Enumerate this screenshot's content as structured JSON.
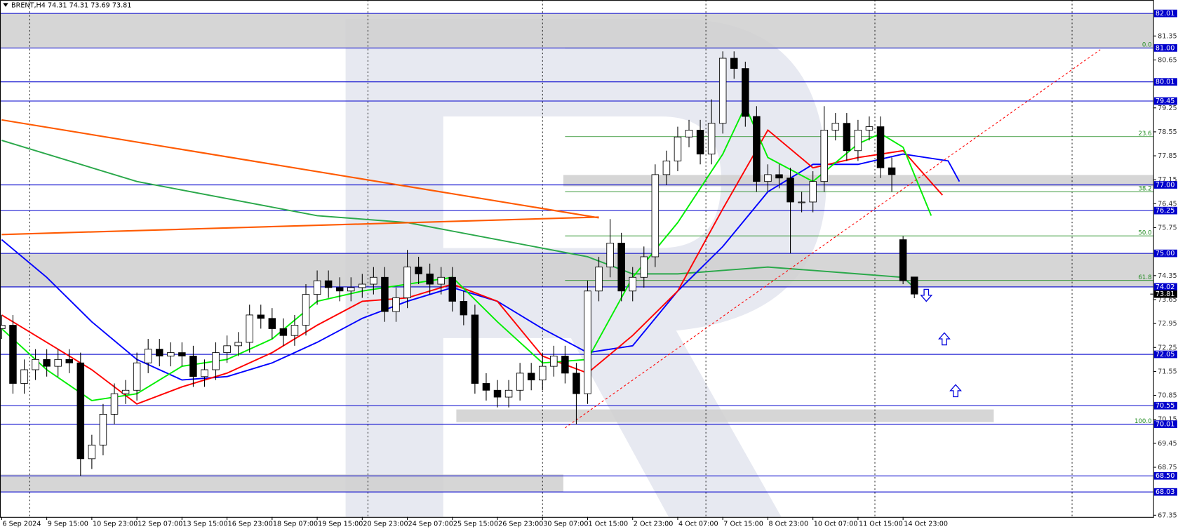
{
  "chart_data": {
    "type": "candlestick",
    "header": "BRENT,H4 74.31 74.31 73.69 73.81",
    "xlim": [
      -0.3,
      204.4
    ],
    "ylim": [
      67.3,
      82.4
    ],
    "xticks": [
      {
        "value": 0,
        "label": "6 Sep 2024"
      },
      {
        "value": 8,
        "label": "9 Sep 15:00"
      },
      {
        "value": 16,
        "label": "10 Sep 23:00"
      },
      {
        "value": 24,
        "label": "12 Sep 07:00"
      },
      {
        "value": 32,
        "label": "13 Sep 15:00"
      },
      {
        "value": 40,
        "label": "16 Sep 23:00"
      },
      {
        "value": 48,
        "label": "18 Sep 07:00"
      },
      {
        "value": 56,
        "label": "19 Sep 15:00"
      },
      {
        "value": 64,
        "label": "20 Sep 23:00"
      },
      {
        "value": 72,
        "label": "24 Sep 07:00"
      },
      {
        "value": 80,
        "label": "25 Sep 15:00"
      },
      {
        "value": 88,
        "label": "26 Sep 23:00"
      },
      {
        "value": 96,
        "label": "30 Sep 07:00"
      },
      {
        "value": 104,
        "label": "1 Oct 15:00"
      },
      {
        "value": 112,
        "label": "2 Oct 23:00"
      },
      {
        "value": 120,
        "label": "4 Oct 07:00"
      },
      {
        "value": 128,
        "label": "7 Oct 15:00"
      },
      {
        "value": 136,
        "label": "8 Oct 23:00"
      },
      {
        "value": 144,
        "label": "10 Oct 07:00"
      },
      {
        "value": 152,
        "label": "11 Oct 15:00"
      },
      {
        "value": 160,
        "label": "14 Oct 23:00"
      }
    ],
    "yticks": [
      81.35,
      80.65,
      79.25,
      78.55,
      77.85,
      77.15,
      76.45,
      75.75,
      74.35,
      73.65,
      72.95,
      72.25,
      71.55,
      70.85,
      70.15,
      69.45,
      68.75,
      67.35
    ],
    "levels": [
      82.01,
      {
        "value": 81,
        "label": "81.00"
      },
      80.01,
      79.45,
      {
        "value": 77,
        "label": "77.00"
      },
      76.25,
      {
        "value": 75,
        "label": "75.00"
      },
      74.02,
      72.05,
      70.55,
      70.01,
      {
        "value": 68.5,
        "label": "68.50"
      },
      68.03
    ],
    "level_color": "#0000cc",
    "last": 73.81,
    "separators": [
      5,
      65,
      96,
      125,
      155,
      190
    ],
    "zones": [
      {
        "x": [
          -0.3,
          204.4
        ],
        "y": [
          81.0,
          82.01
        ]
      },
      {
        "x": [
          -0.3,
          204.4
        ],
        "y": [
          74.02,
          75.0
        ]
      },
      {
        "x": [
          99.7,
          204.4
        ],
        "y": [
          76.96,
          77.29
        ]
      },
      {
        "x": [
          80.7,
          176.1
        ],
        "y": [
          70.07,
          70.44
        ]
      },
      {
        "x": [
          -0.3,
          99.7
        ],
        "y": [
          68.03,
          68.54
        ]
      }
    ],
    "fib": {
      "x_start": 100,
      "color": "#1e8a1e",
      "levels": [
        {
          "label": "0.0",
          "value": 81.0
        },
        {
          "label": "23.6",
          "value": 78.41
        },
        {
          "label": "38.2",
          "value": 76.8
        },
        {
          "label": "50.0",
          "value": 75.51
        },
        {
          "label": "61.8",
          "value": 74.21
        },
        {
          "label": "100.0",
          "value": 70.01
        }
      ]
    },
    "x": [
      0,
      2,
      4,
      6,
      8,
      10,
      12,
      14,
      16,
      18,
      20,
      22,
      24,
      26,
      28,
      30,
      32,
      34,
      36,
      38,
      40,
      42,
      44,
      46,
      48,
      50,
      52,
      54,
      56,
      58,
      60,
      62,
      64,
      66,
      68,
      70,
      72,
      74,
      76,
      78,
      80,
      82,
      84,
      86,
      88,
      90,
      92,
      94,
      96,
      98,
      100,
      102,
      104,
      106,
      108,
      110,
      112,
      114,
      116,
      118,
      120,
      122,
      124,
      126,
      128,
      130,
      132,
      134,
      136,
      138,
      140,
      142,
      144,
      146,
      148,
      150,
      152,
      154,
      156,
      158,
      160,
      162
    ],
    "open": [
      72.8,
      72.9,
      71.2,
      71.6,
      71.9,
      71.7,
      71.9,
      71.8,
      69.0,
      69.4,
      70.3,
      70.9,
      71.0,
      71.8,
      72.2,
      72.0,
      72.1,
      72.0,
      71.4,
      71.6,
      72.1,
      72.3,
      72.4,
      73.2,
      73.1,
      72.8,
      72.6,
      72.9,
      73.8,
      74.2,
      74.0,
      73.9,
      74.0,
      74.1,
      74.3,
      73.3,
      73.7,
      74.6,
      74.4,
      74.1,
      74.3,
      73.6,
      73.2,
      71.2,
      71.0,
      70.8,
      71.0,
      71.5,
      71.3,
      71.7,
      72.0,
      71.5,
      70.9,
      73.9,
      74.6,
      75.3,
      73.9,
      74.3,
      74.9,
      77.3,
      77.7,
      78.4,
      78.6,
      77.9,
      78.8,
      80.7,
      80.4,
      79.0,
      77.1,
      77.3,
      77.2,
      76.5,
      76.5,
      77.1,
      78.6,
      78.8,
      78.0,
      78.6,
      78.7,
      77.5,
      75.4,
      74.31
    ],
    "high": [
      73.2,
      73.2,
      71.9,
      72.2,
      72.2,
      72.2,
      72.2,
      72.1,
      69.7,
      70.6,
      71.2,
      71.3,
      72.1,
      72.5,
      72.5,
      72.4,
      72.4,
      72.3,
      71.9,
      72.4,
      72.6,
      72.7,
      73.5,
      73.5,
      73.4,
      73.1,
      73.2,
      74.1,
      74.5,
      74.5,
      74.3,
      74.3,
      74.4,
      74.6,
      74.6,
      74.0,
      75.1,
      74.9,
      74.7,
      74.6,
      74.6,
      73.9,
      73.5,
      71.5,
      71.3,
      71.3,
      71.8,
      71.8,
      72.1,
      72.3,
      72.3,
      71.8,
      74.2,
      74.9,
      76.0,
      75.6,
      74.6,
      75.2,
      77.6,
      78.0,
      78.7,
      78.9,
      78.9,
      79.5,
      80.9,
      80.9,
      80.6,
      79.3,
      77.6,
      77.6,
      77.5,
      76.8,
      77.4,
      79.3,
      79.1,
      79.1,
      78.9,
      79.0,
      79.0,
      77.8,
      75.5,
      74.31
    ],
    "low": [
      72.5,
      70.9,
      70.9,
      71.3,
      71.4,
      71.4,
      71.5,
      68.5,
      68.7,
      69.1,
      70.0,
      70.6,
      70.7,
      71.5,
      71.7,
      71.7,
      71.7,
      71.1,
      71.1,
      71.3,
      71.8,
      72.0,
      72.1,
      72.8,
      72.5,
      72.3,
      72.3,
      72.6,
      73.5,
      73.7,
      73.6,
      73.6,
      73.7,
      73.8,
      73.0,
      73.0,
      73.4,
      74.1,
      73.8,
      73.8,
      73.3,
      72.9,
      70.9,
      70.7,
      70.5,
      70.5,
      70.7,
      71.0,
      71.0,
      71.4,
      71.2,
      70.0,
      70.6,
      73.6,
      74.3,
      73.6,
      73.6,
      74.0,
      74.6,
      77.0,
      77.4,
      78.1,
      77.6,
      77.6,
      78.5,
      80.1,
      78.7,
      76.8,
      76.8,
      76.9,
      75.0,
      76.2,
      76.2,
      76.8,
      78.3,
      77.7,
      77.7,
      78.3,
      77.2,
      76.8,
      74.1,
      73.69
    ],
    "close": [
      72.9,
      71.2,
      71.6,
      71.9,
      71.7,
      71.9,
      71.8,
      69.0,
      69.4,
      70.3,
      70.9,
      71.0,
      71.8,
      72.2,
      72.0,
      72.1,
      72.0,
      71.4,
      71.6,
      72.1,
      72.3,
      72.4,
      73.2,
      73.1,
      72.8,
      72.6,
      72.9,
      73.8,
      74.2,
      74.0,
      73.9,
      74.0,
      74.1,
      74.3,
      73.3,
      73.7,
      74.6,
      74.4,
      74.1,
      74.3,
      73.6,
      73.2,
      71.2,
      71.0,
      70.8,
      71.0,
      71.5,
      71.3,
      71.7,
      72.0,
      71.5,
      70.9,
      73.9,
      74.6,
      75.3,
      73.9,
      74.3,
      74.9,
      77.3,
      77.7,
      78.4,
      78.6,
      77.9,
      78.8,
      80.7,
      80.4,
      79.0,
      77.1,
      77.3,
      77.2,
      76.5,
      76.5,
      77.1,
      78.6,
      78.8,
      78.0,
      78.6,
      78.7,
      77.5,
      77.3,
      74.2,
      73.81
    ],
    "up_color": "#ffffff",
    "down_color": "#000000",
    "lines": [
      {
        "color": "#2aa84a",
        "x": [
          0,
          24,
          40,
          56,
          72,
          88,
          104,
          112,
          120,
          128,
          136,
          144,
          152,
          160,
          162
        ],
        "values": [
          78.3,
          77.1,
          76.6,
          76.1,
          75.9,
          75.4,
          74.9,
          74.4,
          74.4,
          74.5,
          74.6,
          74.5,
          74.4,
          74.3,
          74.0
        ]
      },
      {
        "color": "#0000ff",
        "x": [
          0,
          8,
          16,
          24,
          32,
          40,
          48,
          56,
          64,
          72,
          80,
          88,
          96,
          104,
          112,
          120,
          128,
          136,
          144,
          152,
          160,
          168,
          170
        ],
        "values": [
          75.4,
          74.3,
          73.0,
          71.9,
          71.3,
          71.4,
          71.8,
          72.4,
          73.1,
          73.6,
          74.0,
          73.6,
          72.8,
          72.1,
          72.3,
          73.9,
          75.2,
          76.8,
          77.6,
          77.6,
          77.9,
          77.7,
          77.1
        ]
      },
      {
        "color": "#ff0000",
        "x": [
          0,
          8,
          16,
          24,
          32,
          40,
          48,
          56,
          64,
          72,
          80,
          88,
          96,
          104,
          112,
          120,
          128,
          136,
          144,
          152,
          160,
          167
        ],
        "values": [
          73.2,
          72.4,
          71.6,
          70.6,
          71.1,
          71.5,
          72.1,
          72.9,
          73.6,
          73.7,
          74.1,
          73.6,
          72.0,
          71.5,
          72.6,
          73.9,
          76.3,
          78.6,
          77.5,
          77.8,
          78.0,
          76.7
        ]
      },
      {
        "color": "#00ee00",
        "x": [
          0,
          8,
          16,
          24,
          32,
          40,
          48,
          56,
          64,
          72,
          80,
          88,
          96,
          104,
          112,
          120,
          128,
          132,
          136,
          144,
          152,
          156,
          160,
          165
        ],
        "values": [
          72.8,
          71.6,
          70.7,
          70.9,
          71.7,
          71.9,
          72.5,
          73.6,
          73.9,
          74.1,
          74.3,
          73.0,
          71.8,
          71.9,
          74.3,
          75.9,
          77.9,
          79.3,
          77.8,
          77.1,
          78.2,
          78.5,
          78.1,
          76.1
        ]
      }
    ],
    "trendlines": [
      {
        "color": "#ff5a00",
        "dashed": false,
        "x": [
          0,
          106
        ],
        "values": [
          78.9,
          76.04
        ]
      },
      {
        "color": "#ff5a00",
        "dashed": false,
        "x": [
          0,
          106
        ],
        "values": [
          75.55,
          76.06
        ]
      },
      {
        "color": "#ff0000",
        "dashed": true,
        "x": [
          100,
          195
        ],
        "values": [
          69.9,
          80.95
        ]
      }
    ]
  }
}
